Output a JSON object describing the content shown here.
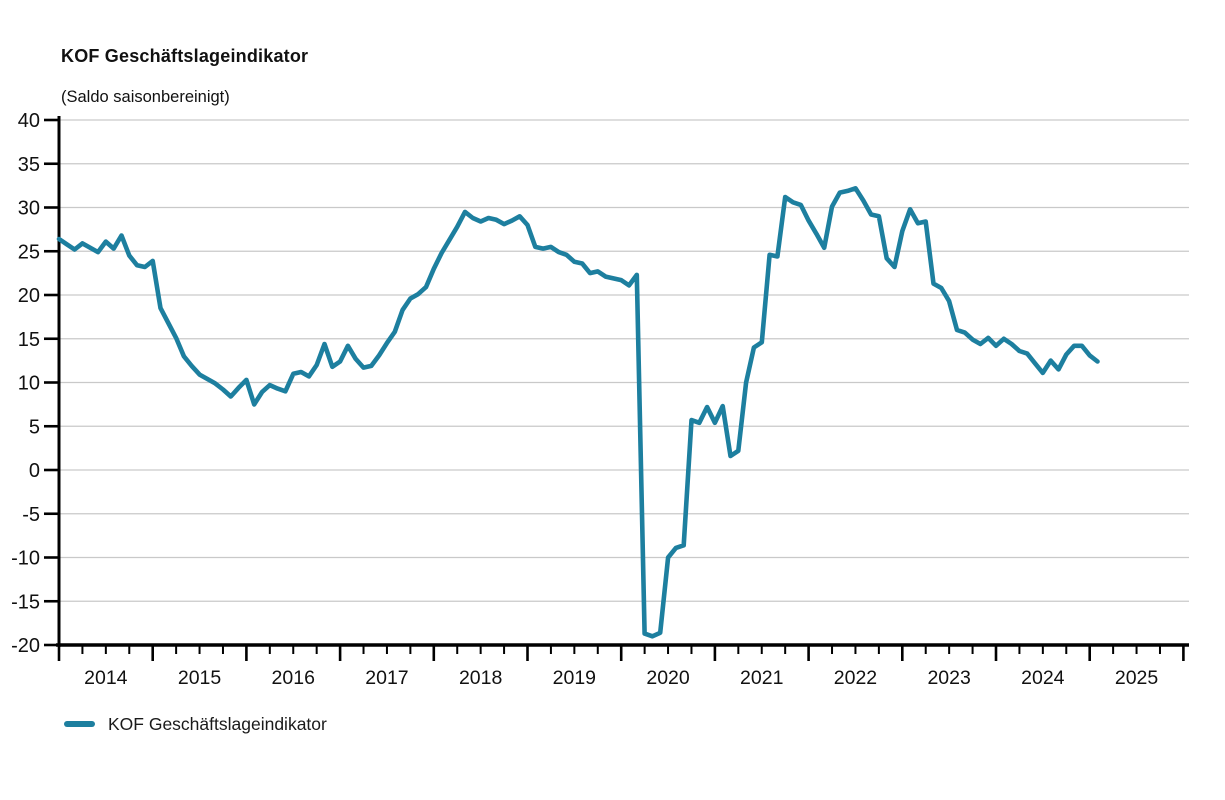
{
  "header": {
    "title": "KOF Geschäftslageindikator",
    "subtitle": "(Saldo saisonbereinigt)"
  },
  "legend": {
    "label": "KOF Geschäftslageindikator"
  },
  "colors": {
    "line": "#1d7f9f",
    "grid": "#c9c9c9",
    "axis": "#000000",
    "text": "#111111"
  },
  "chart_data": {
    "type": "line",
    "title": "KOF Geschäftslageindikator",
    "subtitle": "(Saldo saisonbereinigt)",
    "series_name": "KOF Geschäftslageindikator",
    "x_unit": "month",
    "start_year": 2014,
    "start_month": 1,
    "values": [
      26.4,
      25.8,
      25.2,
      25.9,
      25.4,
      24.9,
      26.1,
      25.3,
      26.8,
      24.5,
      23.4,
      23.2,
      23.9,
      18.5,
      16.8,
      15.1,
      13.0,
      11.9,
      10.9,
      10.4,
      9.9,
      9.2,
      8.4,
      9.4,
      10.3,
      7.5,
      8.9,
      9.7,
      9.3,
      9.0,
      11.0,
      11.2,
      10.7,
      12.0,
      14.4,
      11.8,
      12.4,
      14.2,
      12.7,
      11.7,
      11.9,
      13.1,
      14.5,
      15.8,
      18.3,
      19.6,
      20.1,
      20.9,
      23.0,
      24.8,
      26.3,
      27.8,
      29.5,
      28.8,
      28.4,
      28.8,
      28.6,
      28.1,
      28.5,
      29.0,
      28.0,
      25.5,
      25.3,
      25.5,
      24.9,
      24.6,
      23.8,
      23.6,
      22.5,
      22.7,
      22.1,
      21.9,
      21.7,
      21.1,
      22.3,
      -18.7,
      -19.0,
      -18.6,
      -10.0,
      -8.9,
      -8.6,
      5.7,
      5.4,
      7.2,
      5.4,
      7.3,
      1.6,
      2.2,
      10.0,
      14.0,
      14.6,
      24.6,
      24.4,
      31.2,
      30.6,
      30.3,
      28.5,
      27.0,
      25.4,
      30.1,
      31.7,
      31.9,
      32.2,
      30.8,
      29.2,
      29.0,
      24.2,
      23.2,
      27.3,
      29.8,
      28.2,
      28.4,
      21.3,
      20.8,
      19.3,
      16.0,
      15.7,
      14.9,
      14.4,
      15.1,
      14.2,
      15.0,
      14.4,
      13.6,
      13.3,
      12.2,
      11.1,
      12.5,
      11.5,
      13.2,
      14.2,
      14.2,
      13.1,
      12.4
    ],
    "ylim": [
      -20,
      40
    ],
    "y_ticks": [
      40,
      35,
      30,
      25,
      20,
      15,
      10,
      5,
      0,
      -5,
      -10,
      -15,
      -20
    ],
    "xlim": [
      2014,
      2026
    ],
    "x_tick_labels": [
      "2014",
      "2015",
      "2016",
      "2017",
      "2018",
      "2019",
      "2020",
      "2021",
      "2022",
      "2023",
      "2024",
      "2025"
    ],
    "x_minor_tick_interval_years": 0.25,
    "grid": "horizontal",
    "legend_position": "bottom-left"
  }
}
